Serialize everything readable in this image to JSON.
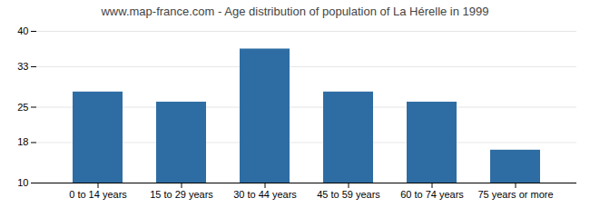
{
  "chart_data": {
    "type": "bar",
    "title": "www.map-france.com - Age distribution of population of La Hérelle in 1999",
    "categories": [
      "0 to 14 years",
      "15 to 29 years",
      "30 to 44 years",
      "45 to 59 years",
      "60 to 74 years",
      "75 years or more"
    ],
    "values": [
      28,
      26,
      36.5,
      28,
      26,
      16.5
    ],
    "color": "#2e6da4",
    "ylim": [
      10,
      40
    ],
    "yticks": [
      10,
      18,
      25,
      33,
      40
    ],
    "grid": true
  }
}
